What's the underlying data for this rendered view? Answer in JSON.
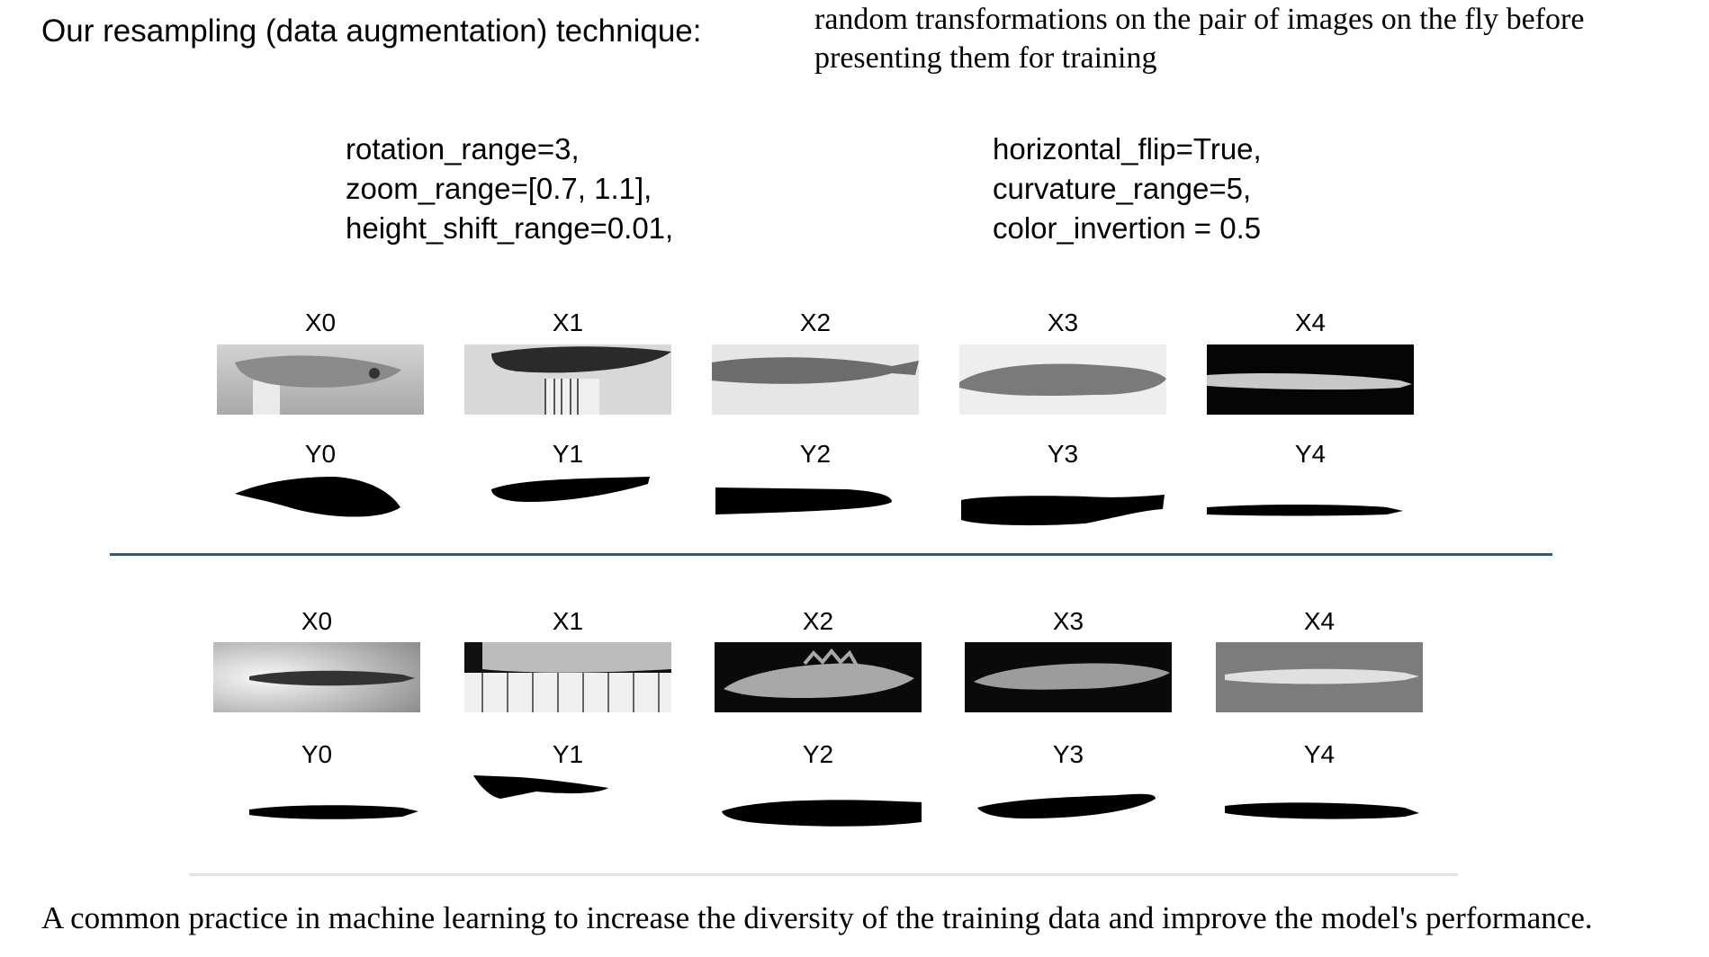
{
  "heading": "Our resampling (data augmentation) technique:",
  "description": "random transformations on the pair of images on the fly before presenting them for training",
  "params_left": [
    "rotation_range=3,",
    "zoom_range=[0.7, 1.1],",
    "height_shift_range=0.01,"
  ],
  "params_right": [
    "horizontal_flip=True,",
    "curvature_range=5,",
    "color_invertion = 0.5"
  ],
  "set1": {
    "x_labels": [
      "X0",
      "X1",
      "X2",
      "X3",
      "X4"
    ],
    "y_labels": [
      "Y0",
      "Y1",
      "Y2",
      "Y3",
      "Y4"
    ]
  },
  "set2": {
    "x_labels": [
      "X0",
      "X1",
      "X2",
      "X3",
      "X4"
    ],
    "y_labels": [
      "Y0",
      "Y1",
      "Y2",
      "Y3",
      "Y4"
    ]
  },
  "footer": "A common practice in machine learning to increase the diversity of the training data and improve the model's performance.",
  "colors": {
    "divider": "#1f5f8b",
    "rule": "#e3e3e3"
  }
}
